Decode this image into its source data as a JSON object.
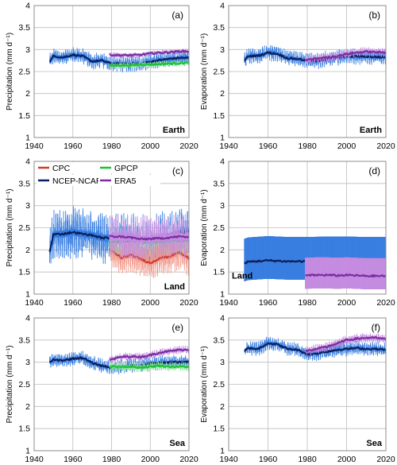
{
  "colors": {
    "NCEP-NCAR": "#0b1f5c",
    "NCEP-NCAR_band": "#3a7fe0",
    "ERA5": "#7a2fa0",
    "ERA5_band": "#c58ce0",
    "CPC": "#d23a2a",
    "CPC_band": "#f19a8c",
    "GPCP": "#1fbf3a",
    "GPCP_band": "#8fe39a",
    "grid": "#bdbdbd",
    "frame": "#8c8c8c"
  },
  "legend": [
    {
      "name": "CPC",
      "series": "CPC"
    },
    {
      "name": "GPCP",
      "series": "GPCP"
    },
    {
      "name": "NCEP-NCAR",
      "series": "NCEP-NCAR"
    },
    {
      "name": "ERA5",
      "series": "ERA5"
    }
  ],
  "chart_data": [
    {
      "type": "line",
      "panel": "(a)",
      "region": "Earth",
      "ylabel": "Precipitation (mm d⁻¹)",
      "xlim": [
        1940,
        2020
      ],
      "ylim": [
        1,
        4
      ],
      "xticks": [
        1940,
        1960,
        1980,
        2000,
        2020
      ],
      "yticks": [
        1,
        1.5,
        2,
        2.5,
        3,
        3.5,
        4
      ],
      "series": [
        {
          "name": "NCEP-NCAR",
          "x": [
            1948,
            1950,
            1955,
            1960,
            1965,
            1970,
            1975,
            1980,
            1985,
            1990,
            1995,
            2000,
            2005,
            2010,
            2015,
            2020
          ],
          "values": [
            2.72,
            2.85,
            2.82,
            2.88,
            2.85,
            2.73,
            2.75,
            2.68,
            2.67,
            2.68,
            2.67,
            2.72,
            2.76,
            2.79,
            2.81,
            2.81
          ],
          "spread": 0.2
        },
        {
          "name": "ERA5",
          "x": [
            1979,
            1985,
            1990,
            1995,
            2000,
            2005,
            2010,
            2015,
            2020
          ],
          "values": [
            2.88,
            2.87,
            2.87,
            2.88,
            2.91,
            2.93,
            2.94,
            2.96,
            2.96
          ],
          "spread": 0.07
        },
        {
          "name": "GPCP",
          "x": [
            1979,
            1985,
            1990,
            1995,
            2000,
            2005,
            2010,
            2015,
            2020
          ],
          "values": [
            2.63,
            2.64,
            2.64,
            2.66,
            2.66,
            2.67,
            2.68,
            2.69,
            2.7
          ],
          "spread": 0.08
        }
      ]
    },
    {
      "type": "line",
      "panel": "(b)",
      "region": "Earth",
      "ylabel": "Evaporation (mm d⁻¹)",
      "xlim": [
        1940,
        2020
      ],
      "ylim": [
        1,
        4
      ],
      "xticks": [
        1940,
        1960,
        1980,
        2000,
        2020
      ],
      "yticks": [
        1,
        1.5,
        2,
        2.5,
        3,
        3.5,
        4
      ],
      "series": [
        {
          "name": "NCEP-NCAR",
          "x": [
            1948,
            1950,
            1955,
            1960,
            1965,
            1970,
            1975,
            1980,
            1985,
            1990,
            1995,
            2000,
            2005,
            2010,
            2015,
            2020
          ],
          "values": [
            2.75,
            2.85,
            2.86,
            2.93,
            2.9,
            2.8,
            2.79,
            2.75,
            2.74,
            2.79,
            2.82,
            2.84,
            2.85,
            2.84,
            2.83,
            2.83
          ],
          "spread": 0.2
        },
        {
          "name": "ERA5",
          "x": [
            1979,
            1985,
            1990,
            1995,
            2000,
            2005,
            2010,
            2015,
            2020
          ],
          "values": [
            2.76,
            2.8,
            2.82,
            2.85,
            2.9,
            2.93,
            2.95,
            2.94,
            2.93
          ],
          "spread": 0.12
        }
      ]
    },
    {
      "type": "line",
      "panel": "(c)",
      "region": "Land",
      "ylabel": "Precipitation (mm d⁻¹)",
      "xlim": [
        1940,
        2020
      ],
      "ylim": [
        1,
        4
      ],
      "xticks": [
        1940,
        1960,
        1980,
        2000,
        2020
      ],
      "yticks": [
        1,
        1.5,
        2,
        2.5,
        3,
        3.5,
        4
      ],
      "series": [
        {
          "name": "NCEP-NCAR",
          "x": [
            1948,
            1950,
            1955,
            1960,
            1965,
            1970,
            1975,
            1980,
            1985,
            1990,
            1995,
            2000,
            2005,
            2010,
            2015,
            2020
          ],
          "values": [
            1.95,
            2.35,
            2.36,
            2.4,
            2.36,
            2.33,
            2.27,
            2.27,
            2.3,
            2.28,
            2.24,
            2.2,
            2.28,
            2.3,
            2.38,
            2.42
          ],
          "spread": 0.5
        },
        {
          "name": "ERA5",
          "x": [
            1979,
            1985,
            1990,
            1995,
            2000,
            2005,
            2010,
            2015,
            2020
          ],
          "values": [
            2.3,
            2.3,
            2.28,
            2.24,
            2.25,
            2.26,
            2.28,
            2.3,
            2.29
          ],
          "spread": 0.45
        },
        {
          "name": "GPCP",
          "x": [
            1979,
            1985,
            1990,
            1995,
            2000,
            2005,
            2010,
            2015,
            2020
          ],
          "values": [
            2.18,
            2.18,
            2.2,
            2.18,
            2.17,
            2.18,
            2.2,
            2.2,
            2.21
          ],
          "spread": 0.3
        },
        {
          "name": "CPC",
          "x": [
            1979,
            1985,
            1990,
            1995,
            2000,
            2005,
            2010,
            2015,
            2020
          ],
          "values": [
            2.02,
            1.82,
            1.88,
            1.8,
            1.7,
            1.82,
            1.85,
            1.95,
            1.8
          ],
          "spread": 0.35
        }
      ]
    },
    {
      "type": "line",
      "panel": "(d)",
      "region": "Land",
      "ylabel": "Evaporation (mm d⁻¹)",
      "xlim": [
        1940,
        2020
      ],
      "ylim": [
        1,
        4
      ],
      "xticks": [
        1940,
        1960,
        1980,
        2000,
        2020
      ],
      "yticks": [
        1,
        1.5,
        2,
        2.5,
        3,
        3.5,
        4
      ],
      "series": [
        {
          "name": "NCEP-NCAR",
          "x": [
            1948,
            1950,
            1960,
            1970,
            1980,
            1990,
            2000,
            2010,
            2020
          ],
          "values": [
            1.7,
            1.73,
            1.76,
            1.74,
            1.74,
            1.75,
            1.75,
            1.74,
            1.74
          ],
          "spread": 0.55
        },
        {
          "name": "ERA5",
          "x": [
            1979,
            1985,
            1990,
            1995,
            2000,
            2005,
            2010,
            2015,
            2020
          ],
          "values": [
            1.42,
            1.43,
            1.43,
            1.42,
            1.43,
            1.42,
            1.41,
            1.41,
            1.41
          ],
          "spread": 0.4
        }
      ]
    },
    {
      "type": "line",
      "panel": "(e)",
      "region": "Sea",
      "ylabel": "Precipitation (mm d⁻¹)",
      "xlim": [
        1940,
        2020
      ],
      "ylim": [
        1,
        4
      ],
      "xticks": [
        1940,
        1960,
        1980,
        2000,
        2020
      ],
      "yticks": [
        1,
        1.5,
        2,
        2.5,
        3,
        3.5,
        4
      ],
      "series": [
        {
          "name": "NCEP-NCAR",
          "x": [
            1948,
            1950,
            1955,
            1960,
            1965,
            1970,
            1975,
            1980,
            1985,
            1990,
            1995,
            2000,
            2005,
            2010,
            2015,
            2020
          ],
          "values": [
            3.0,
            3.05,
            3.04,
            3.08,
            3.1,
            2.98,
            2.92,
            2.88,
            2.9,
            2.93,
            2.92,
            2.97,
            2.98,
            3.0,
            3.0,
            3.0
          ],
          "spread": 0.18
        },
        {
          "name": "ERA5",
          "x": [
            1979,
            1985,
            1990,
            1995,
            2000,
            2005,
            2010,
            2015,
            2020
          ],
          "values": [
            3.05,
            3.12,
            3.13,
            3.12,
            3.16,
            3.22,
            3.25,
            3.28,
            3.28
          ],
          "spread": 0.1
        },
        {
          "name": "GPCP",
          "x": [
            1979,
            1985,
            1990,
            1995,
            2000,
            2005,
            2010,
            2015,
            2020
          ],
          "values": [
            2.9,
            2.9,
            2.9,
            2.88,
            2.9,
            2.92,
            2.9,
            2.9,
            2.9
          ],
          "spread": 0.12
        }
      ]
    },
    {
      "type": "line",
      "panel": "(f)",
      "region": "Sea",
      "ylabel": "Evaporation (mm d⁻¹)",
      "xlim": [
        1940,
        2020
      ],
      "ylim": [
        1,
        4
      ],
      "xticks": [
        1940,
        1960,
        1980,
        2000,
        2020
      ],
      "yticks": [
        1,
        1.5,
        2,
        2.5,
        3,
        3.5,
        4
      ],
      "series": [
        {
          "name": "NCEP-NCAR",
          "x": [
            1948,
            1950,
            1955,
            1960,
            1965,
            1970,
            1975,
            1980,
            1985,
            1990,
            1995,
            2000,
            2005,
            2010,
            2015,
            2020
          ],
          "values": [
            3.25,
            3.32,
            3.3,
            3.43,
            3.4,
            3.3,
            3.28,
            3.18,
            3.2,
            3.24,
            3.28,
            3.3,
            3.32,
            3.3,
            3.3,
            3.28
          ],
          "spread": 0.18
        },
        {
          "name": "ERA5",
          "x": [
            1979,
            1985,
            1990,
            1995,
            2000,
            2005,
            2010,
            2015,
            2020
          ],
          "values": [
            3.25,
            3.3,
            3.35,
            3.42,
            3.5,
            3.53,
            3.55,
            3.55,
            3.52
          ],
          "spread": 0.12
        }
      ]
    }
  ]
}
